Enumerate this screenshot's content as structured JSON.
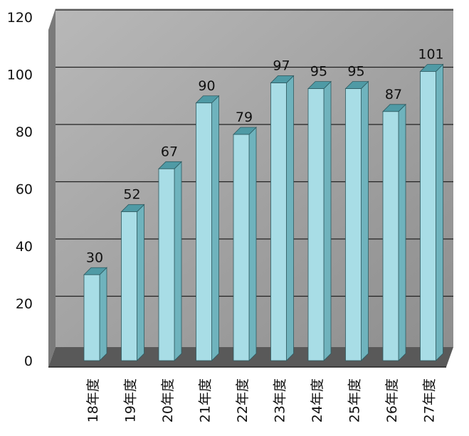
{
  "chart_data": {
    "type": "bar",
    "title": "",
    "xlabel": "",
    "ylabel": "",
    "categories": [
      "18年度",
      "19年度",
      "20年度",
      "21年度",
      "22年度",
      "23年度",
      "24年度",
      "25年度",
      "26年度",
      "27年度"
    ],
    "values": [
      30,
      52,
      67,
      90,
      79,
      97,
      95,
      95,
      87,
      101
    ],
    "ylim": [
      0,
      120
    ],
    "yticks": [
      0,
      20,
      40,
      60,
      80,
      100,
      120
    ],
    "grid": true,
    "style": "3d",
    "colors": {
      "bar_front": "#a8dde6",
      "bar_side": "#6fb3bd",
      "bar_top": "#4f9aa5",
      "wall": "#9c9c9c",
      "floor": "#5a5a5a",
      "grid": "#222222"
    }
  }
}
